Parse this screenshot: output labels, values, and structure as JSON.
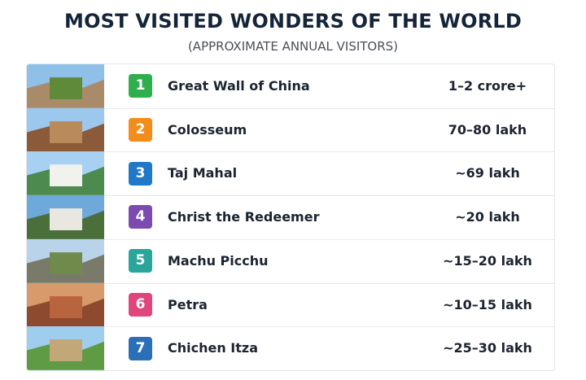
{
  "header": {
    "title": "MOST VISITED WONDERS OF THE WORLD",
    "subtitle": "(APPROXIMATE ANNUAL VISITORS)"
  },
  "table": {
    "rows": [
      {
        "rank": "1",
        "name": "Great Wall of China",
        "visitors": "1–2 crore+"
      },
      {
        "rank": "2",
        "name": "Colosseum",
        "visitors": "70–80 lakh"
      },
      {
        "rank": "3",
        "name": "Taj Mahal",
        "visitors": "~69 lakh"
      },
      {
        "rank": "4",
        "name": "Christ the Redeemer",
        "visitors": "~20 lakh"
      },
      {
        "rank": "5",
        "name": "Machu Picchu",
        "visitors": "~15–20 lakh"
      },
      {
        "rank": "6",
        "name": "Petra",
        "visitors": "~10–15 lakh"
      },
      {
        "rank": "7",
        "name": "Chichen Itza",
        "visitors": "~25–30 lakh"
      }
    ]
  }
}
